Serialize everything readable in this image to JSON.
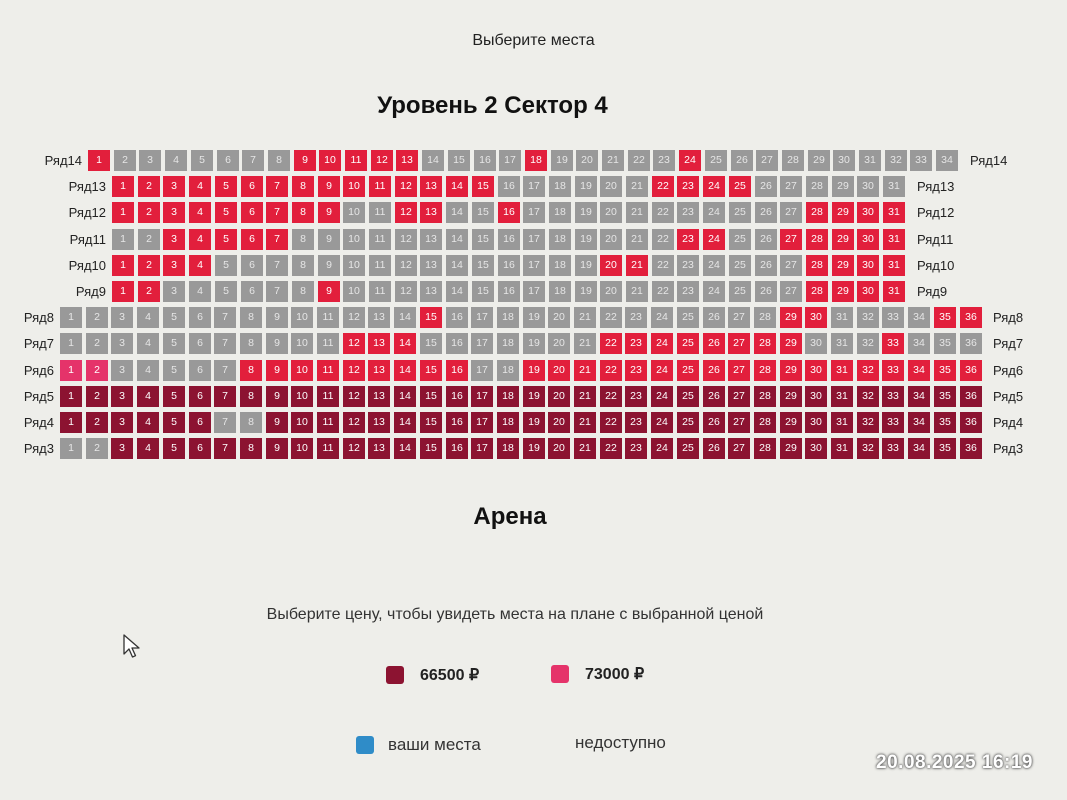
{
  "page_title": "Выберите места",
  "level_title": "Уровень 2 Сектор 4",
  "arena_label": "Арена",
  "price_hint": "Выберите цену, чтобы увидеть места на плане с выбранной ценой",
  "legend": {
    "prices": [
      {
        "label": "66500 ₽",
        "color": "#8c1331"
      },
      {
        "label": "73000 ₽",
        "color": "#e5336a"
      }
    ],
    "your_seats": {
      "label": "ваши места",
      "color": "#2f8cc8"
    },
    "unavailable": {
      "label": "недоступно"
    }
  },
  "timestamp": "20.08.2025  16:19",
  "seat_colors": {
    "u": "#999999",
    "r": "#e21f3c",
    "d": "#8c1331",
    "p": "#e5336a"
  },
  "rows": [
    {
      "label": "Ряд14",
      "seats": [
        "r",
        "u",
        "u",
        "u",
        "u",
        "u",
        "u",
        "u",
        "r",
        "r",
        "r",
        "r",
        "r",
        "u",
        "u",
        "u",
        "u",
        "r",
        "u",
        "u",
        "u",
        "u",
        "u",
        "r",
        "u",
        "u",
        "u",
        "u",
        "u",
        "u",
        "u",
        "u",
        "u",
        "u"
      ]
    },
    {
      "label": "Ряд13",
      "seats": [
        "r",
        "r",
        "r",
        "r",
        "r",
        "r",
        "r",
        "r",
        "r",
        "r",
        "r",
        "r",
        "r",
        "r",
        "r",
        "u",
        "u",
        "u",
        "u",
        "u",
        "u",
        "r",
        "r",
        "r",
        "r",
        "u",
        "u",
        "u",
        "u",
        "u",
        "u"
      ]
    },
    {
      "label": "Ряд12",
      "seats": [
        "r",
        "r",
        "r",
        "r",
        "r",
        "r",
        "r",
        "r",
        "r",
        "u",
        "u",
        "r",
        "r",
        "u",
        "u",
        "r",
        "u",
        "u",
        "u",
        "u",
        "u",
        "u",
        "u",
        "u",
        "u",
        "u",
        "u",
        "r",
        "r",
        "r",
        "r"
      ]
    },
    {
      "label": "Ряд11",
      "seats": [
        "u",
        "u",
        "r",
        "r",
        "r",
        "r",
        "r",
        "u",
        "u",
        "u",
        "u",
        "u",
        "u",
        "u",
        "u",
        "u",
        "u",
        "u",
        "u",
        "u",
        "u",
        "u",
        "r",
        "r",
        "u",
        "u",
        "r",
        "r",
        "r",
        "r",
        "r"
      ]
    },
    {
      "label": "Ряд10",
      "seats": [
        "r",
        "r",
        "r",
        "r",
        "u",
        "u",
        "u",
        "u",
        "u",
        "u",
        "u",
        "u",
        "u",
        "u",
        "u",
        "u",
        "u",
        "u",
        "u",
        "r",
        "r",
        "u",
        "u",
        "u",
        "u",
        "u",
        "u",
        "r",
        "r",
        "r",
        "r"
      ]
    },
    {
      "label": "Ряд9",
      "seats": [
        "r",
        "r",
        "u",
        "u",
        "u",
        "u",
        "u",
        "u",
        "r",
        "u",
        "u",
        "u",
        "u",
        "u",
        "u",
        "u",
        "u",
        "u",
        "u",
        "u",
        "u",
        "u",
        "u",
        "u",
        "u",
        "u",
        "u",
        "r",
        "r",
        "r",
        "r"
      ]
    },
    {
      "label": "Ряд8",
      "seats": [
        "u",
        "u",
        "u",
        "u",
        "u",
        "u",
        "u",
        "u",
        "u",
        "u",
        "u",
        "u",
        "u",
        "u",
        "r",
        "u",
        "u",
        "u",
        "u",
        "u",
        "u",
        "u",
        "u",
        "u",
        "u",
        "u",
        "u",
        "u",
        "r",
        "r",
        "u",
        "u",
        "u",
        "u",
        "r",
        "r"
      ]
    },
    {
      "label": "Ряд7",
      "seats": [
        "u",
        "u",
        "u",
        "u",
        "u",
        "u",
        "u",
        "u",
        "u",
        "u",
        "u",
        "r",
        "r",
        "r",
        "u",
        "u",
        "u",
        "u",
        "u",
        "u",
        "u",
        "r",
        "r",
        "r",
        "r",
        "r",
        "r",
        "r",
        "r",
        "u",
        "u",
        "u",
        "r",
        "u",
        "u",
        "u"
      ]
    },
    {
      "label": "Ряд6",
      "seats": [
        "p",
        "p",
        "u",
        "u",
        "u",
        "u",
        "u",
        "r",
        "r",
        "r",
        "r",
        "r",
        "r",
        "r",
        "r",
        "r",
        "u",
        "u",
        "r",
        "r",
        "r",
        "r",
        "r",
        "r",
        "r",
        "r",
        "r",
        "r",
        "r",
        "r",
        "r",
        "r",
        "r",
        "r",
        "r",
        "r"
      ]
    },
    {
      "label": "Ряд5",
      "seats": [
        "d",
        "d",
        "d",
        "d",
        "d",
        "d",
        "d",
        "d",
        "d",
        "d",
        "d",
        "d",
        "d",
        "d",
        "d",
        "d",
        "d",
        "d",
        "d",
        "d",
        "d",
        "d",
        "d",
        "d",
        "d",
        "d",
        "d",
        "d",
        "d",
        "d",
        "d",
        "d",
        "d",
        "d",
        "d",
        "d"
      ]
    },
    {
      "label": "Ряд4",
      "seats": [
        "d",
        "d",
        "d",
        "d",
        "d",
        "d",
        "u",
        "u",
        "d",
        "d",
        "d",
        "d",
        "d",
        "d",
        "d",
        "d",
        "d",
        "d",
        "d",
        "d",
        "d",
        "d",
        "d",
        "d",
        "d",
        "d",
        "d",
        "d",
        "d",
        "d",
        "d",
        "d",
        "d",
        "d",
        "d",
        "d"
      ]
    },
    {
      "label": "Ряд3",
      "seats": [
        "u",
        "u",
        "d",
        "d",
        "d",
        "d",
        "d",
        "d",
        "d",
        "d",
        "d",
        "d",
        "d",
        "d",
        "d",
        "d",
        "d",
        "d",
        "d",
        "d",
        "d",
        "d",
        "d",
        "d",
        "d",
        "d",
        "d",
        "d",
        "d",
        "d",
        "d",
        "d",
        "d",
        "d",
        "d",
        "d"
      ]
    }
  ]
}
